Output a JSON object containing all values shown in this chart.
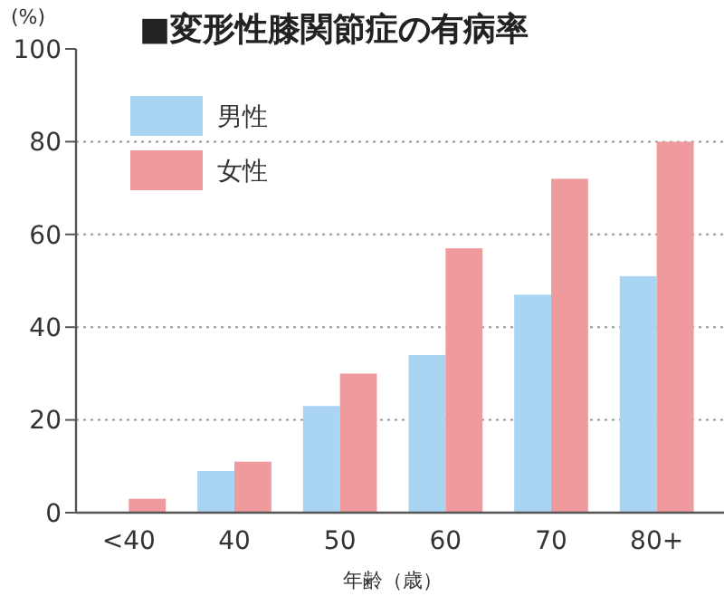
{
  "chart_data": {
    "type": "bar",
    "title": "■変形性膝関節症の有病率",
    "ylabel": "(%)",
    "xlabel": "年齢（歳）",
    "categories": [
      "<40",
      "40",
      "50",
      "60",
      "70",
      "80+"
    ],
    "series": [
      {
        "name": "男性",
        "color": "#a9d5f3",
        "values": [
          0,
          9,
          23,
          34,
          47,
          51
        ]
      },
      {
        "name": "女性",
        "color": "#ef9b9d",
        "values": [
          3,
          11,
          30,
          57,
          72,
          80
        ]
      }
    ],
    "ylim": [
      0,
      100
    ],
    "yticks": [
      0,
      20,
      40,
      60,
      80,
      100
    ],
    "grid": "y",
    "legend": "top left"
  }
}
